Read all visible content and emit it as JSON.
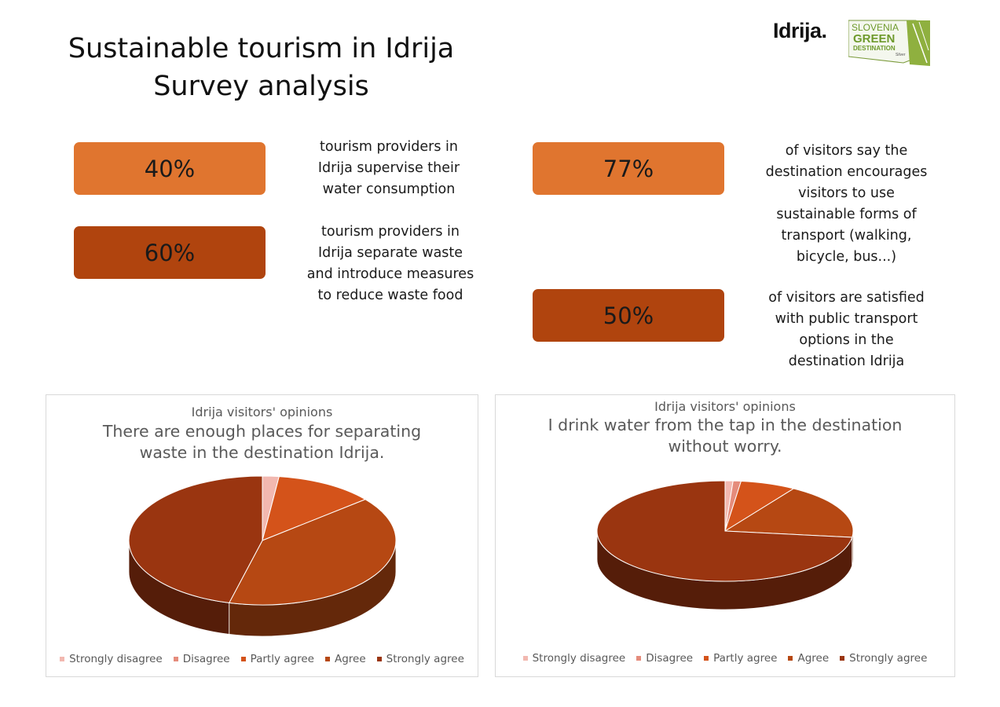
{
  "header": {
    "title_line1": "Sustainable tourism in Idrija",
    "title_line2": "Survey analysis",
    "logo_idrija": "Idrija.",
    "logo_sg_line1a": "SLOVENIA",
    "logo_sg_line2": "GREEN",
    "logo_sg_line3": "DESTINATION",
    "logo_sg_line4": "Silver"
  },
  "stats": [
    {
      "value": "40%",
      "text": [
        "tourism providers in",
        "Idrija supervise their",
        "water consumption"
      ]
    },
    {
      "value": "60%",
      "text": [
        "tourism providers in",
        "Idrija separate waste",
        "and introduce measures",
        "to reduce waste food"
      ]
    },
    {
      "value": "77%",
      "text": [
        "of visitors say the",
        "destination encourages",
        "visitors to use",
        "sustainable forms of",
        "transport (walking,",
        "bicycle, bus...)"
      ]
    },
    {
      "value": "50%",
      "text": [
        "of visitors are satisfied",
        "with public transport",
        "options in the",
        "destination Idrija"
      ]
    }
  ],
  "colors": {
    "strongly_disagree": "#f2b8b0",
    "disagree": "#e58c7c",
    "partly_agree": "#d4531a",
    "agree": "#b64813",
    "strongly_agree": "#9a3510"
  },
  "chart_data": [
    {
      "type": "pie",
      "subtitle": "Idrija visitors' opinions",
      "title_line1": "There are enough places for separating",
      "title_line2": "waste in the destination Idrija.",
      "categories": [
        "Strongly disagree",
        "Disagree",
        "Partly agree",
        "Agree",
        "Strongly agree"
      ],
      "values": [
        2,
        0,
        12,
        40,
        46
      ],
      "legend": "bottom"
    },
    {
      "type": "pie",
      "subtitle": "Idrija visitors' opinions",
      "title_line1": "I drink water from the tap in the destination",
      "title_line2": "without worry.",
      "categories": [
        "Strongly disagree",
        "Disagree",
        "Partly agree",
        "Agree",
        "Strongly agree"
      ],
      "values": [
        1,
        1,
        7,
        18,
        73
      ],
      "legend": "bottom"
    }
  ]
}
